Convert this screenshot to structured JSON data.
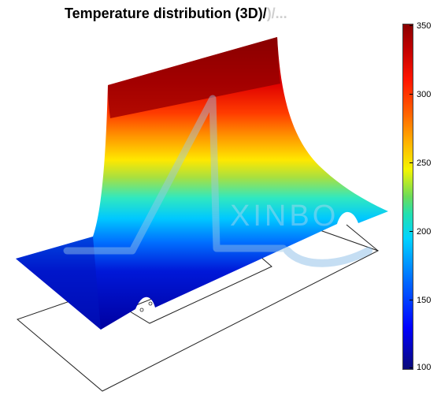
{
  "title": {
    "main": "Temperature distribution (3D)/",
    "tail": ")/..."
  },
  "watermark": "XINBO",
  "colorbar": {
    "min": 100,
    "max": 350,
    "ticks": [
      "350",
      "300",
      "250",
      "200",
      "150",
      "100"
    ],
    "colormap": "jet"
  }
}
